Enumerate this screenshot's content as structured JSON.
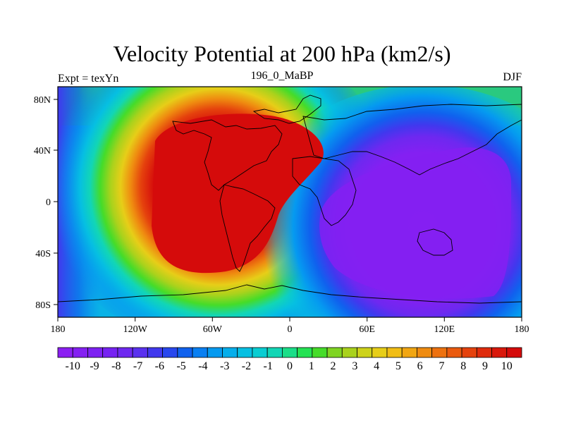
{
  "title": "Velocity Potential at 200 hPa (km2/s)",
  "subtitle_center": "196_0_MaBP",
  "subtitle_left": "Expt = texYn",
  "subtitle_right": "DJF",
  "map": {
    "projection": "cylindrical equidistant",
    "lon_range": [
      -180,
      180
    ],
    "lat_range": [
      -90,
      90
    ],
    "x_tick_labels": [
      "180",
      "120W",
      "60W",
      "0",
      "60E",
      "120E",
      "180"
    ],
    "y_tick_labels": [
      "80N",
      "40N",
      "0",
      "40S",
      "80S"
    ],
    "field": "velocity potential",
    "field_features": [
      {
        "name": "positive maximum",
        "center_lon": -55,
        "center_lat": 20,
        "value": 10
      },
      {
        "name": "negative minimum",
        "center_lon": 110,
        "center_lat": -25,
        "value": -10
      }
    ]
  },
  "colorbar": {
    "labels": [
      "-10",
      "-9",
      "-8",
      "-7",
      "-6",
      "-5",
      "-4",
      "-3",
      "-2",
      "-1",
      "0",
      "1",
      "2",
      "3",
      "4",
      "5",
      "6",
      "7",
      "8",
      "9",
      "10"
    ],
    "colors": [
      "#8b1ff2",
      "#8420f2",
      "#7d21f2",
      "#7622f2",
      "#6e28f0",
      "#5a31ef",
      "#4138ee",
      "#2847ee",
      "#1061ee",
      "#097ff2",
      "#059af0",
      "#05aeeb",
      "#06bfe2",
      "#09cdd2",
      "#12d6b5",
      "#1ade88",
      "#24e253",
      "#45dc29",
      "#7fd422",
      "#a9d21c",
      "#cdd21a",
      "#e7ce18",
      "#f1bd15",
      "#f1a612",
      "#ef8b10",
      "#ed710f",
      "#ea5a0e",
      "#e5420d",
      "#df2b0c",
      "#d9180b",
      "#d50b0b"
    ]
  }
}
